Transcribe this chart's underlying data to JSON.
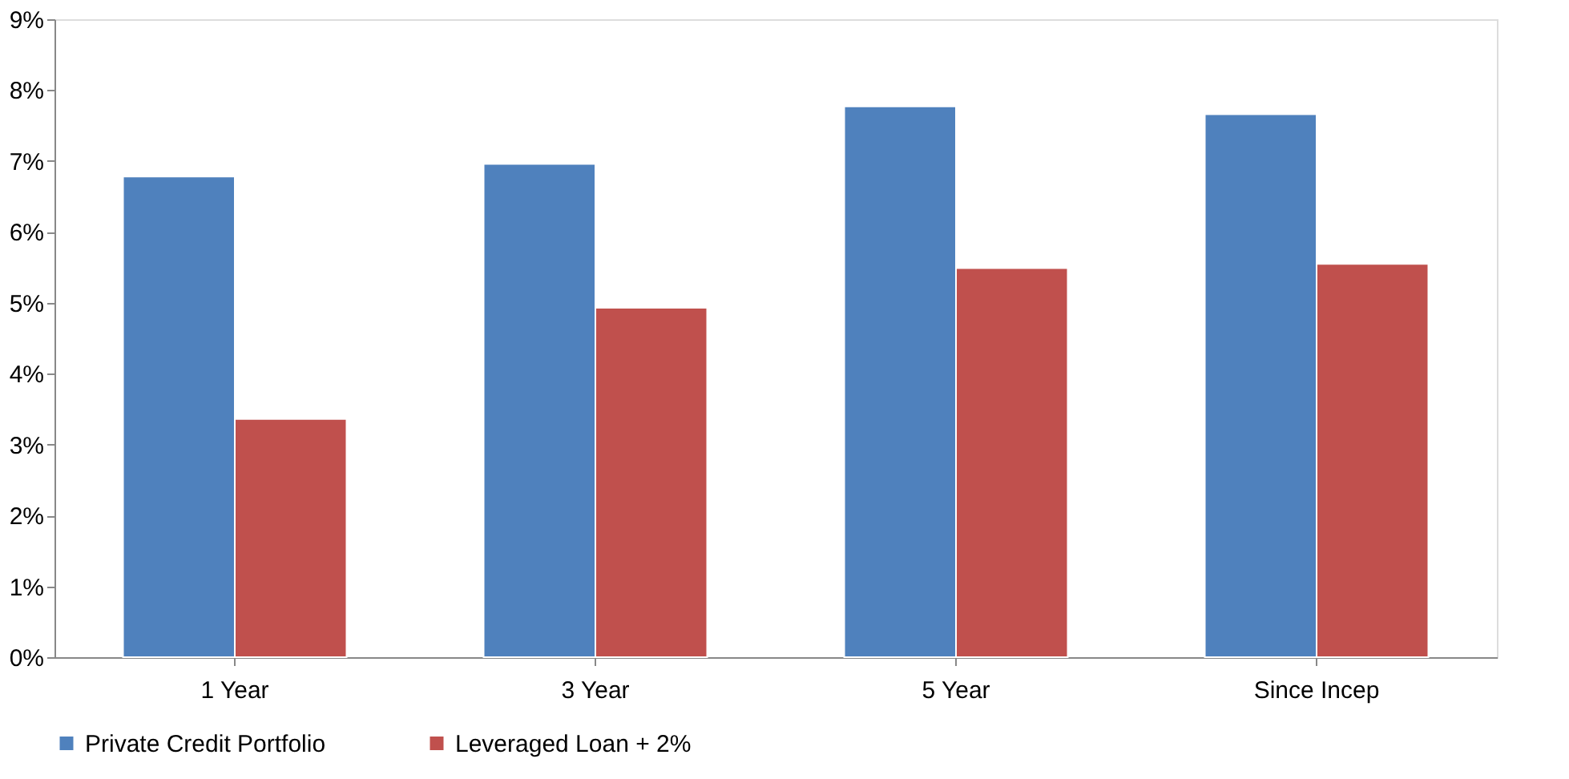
{
  "chart_data": {
    "type": "bar",
    "categories": [
      "1 Year",
      "3 Year",
      "5 Year",
      "Since Incep"
    ],
    "series": [
      {
        "name": "Private Credit Portfolio",
        "color": "#4f81bd",
        "values": [
          6.78,
          6.96,
          7.77,
          7.66
        ]
      },
      {
        "name": "Leveraged Loan + 2%",
        "color": "#c0504d",
        "values": [
          3.36,
          4.93,
          5.49,
          5.55
        ]
      }
    ],
    "ylim": [
      0,
      9
    ],
    "yticks": [
      {
        "value": 0,
        "label": "0%"
      },
      {
        "value": 1,
        "label": "1%"
      },
      {
        "value": 2,
        "label": "2%"
      },
      {
        "value": 3,
        "label": "3%"
      },
      {
        "value": 4,
        "label": "4%"
      },
      {
        "value": 5,
        "label": "5%"
      },
      {
        "value": 6,
        "label": "6%"
      },
      {
        "value": 7,
        "label": "7%"
      },
      {
        "value": 8,
        "label": "8%"
      },
      {
        "value": 9,
        "label": "9%"
      }
    ],
    "grid": false,
    "legend": "bottom"
  }
}
